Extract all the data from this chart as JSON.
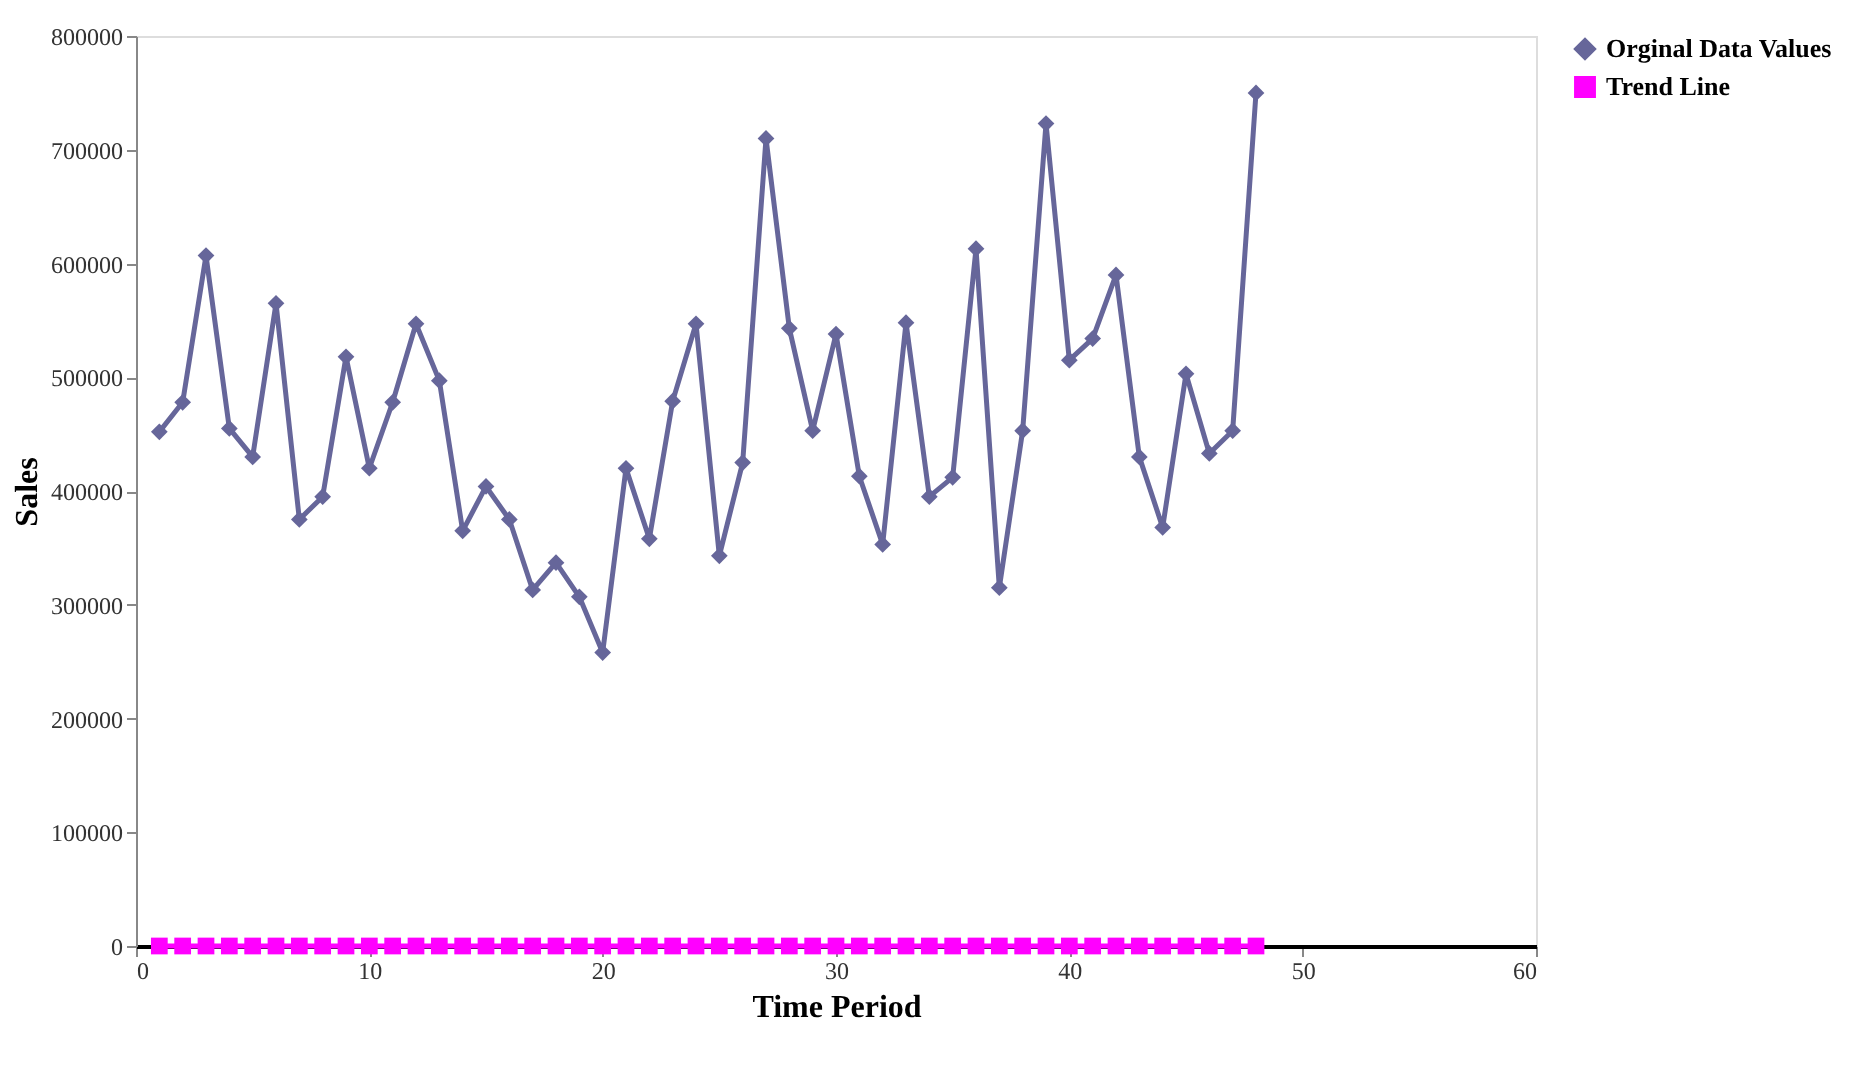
{
  "chart_data": {
    "type": "line",
    "xlabel": "Time Period",
    "ylabel": "Sales",
    "x": [
      1,
      2,
      3,
      4,
      5,
      6,
      7,
      8,
      9,
      10,
      11,
      12,
      13,
      14,
      15,
      16,
      17,
      18,
      19,
      20,
      21,
      22,
      23,
      24,
      25,
      26,
      27,
      28,
      29,
      30,
      31,
      32,
      33,
      34,
      35,
      36,
      37,
      38,
      39,
      40,
      41,
      42,
      43,
      44,
      45,
      46,
      47,
      48
    ],
    "series": [
      {
        "name": "Orginal Data Values",
        "color": "#66669a",
        "marker": "diamond",
        "values": [
          452000,
          478000,
          607000,
          455000,
          430000,
          565000,
          375000,
          395000,
          518000,
          420000,
          478000,
          547000,
          497000,
          365000,
          404000,
          375000,
          313000,
          337000,
          307000,
          258000,
          420000,
          358000,
          479000,
          547000,
          343000,
          425000,
          710000,
          543000,
          453000,
          538000,
          413000,
          353000,
          548000,
          395000,
          412000,
          613000,
          315000,
          453000,
          723000,
          515000,
          534000,
          590000,
          430000,
          368000,
          503000,
          433000,
          453000,
          750000
        ]
      },
      {
        "name": "Trend Line",
        "color": "#ff00ff",
        "marker": "square",
        "values": [
          0,
          0,
          0,
          0,
          0,
          0,
          0,
          0,
          0,
          0,
          0,
          0,
          0,
          0,
          0,
          0,
          0,
          0,
          0,
          0,
          0,
          0,
          0,
          0,
          0,
          0,
          0,
          0,
          0,
          0,
          0,
          0,
          0,
          0,
          0,
          0,
          0,
          0,
          0,
          0,
          0,
          0,
          0,
          0,
          0,
          0,
          0,
          0
        ]
      }
    ],
    "xlim": [
      0,
      60
    ],
    "xticks": [
      0,
      10,
      20,
      30,
      40,
      50,
      60
    ],
    "ylim": [
      0,
      800000
    ],
    "yticks": [
      0,
      100000,
      200000,
      300000,
      400000,
      500000,
      600000,
      700000,
      800000
    ],
    "grid": false,
    "legend": "right"
  }
}
